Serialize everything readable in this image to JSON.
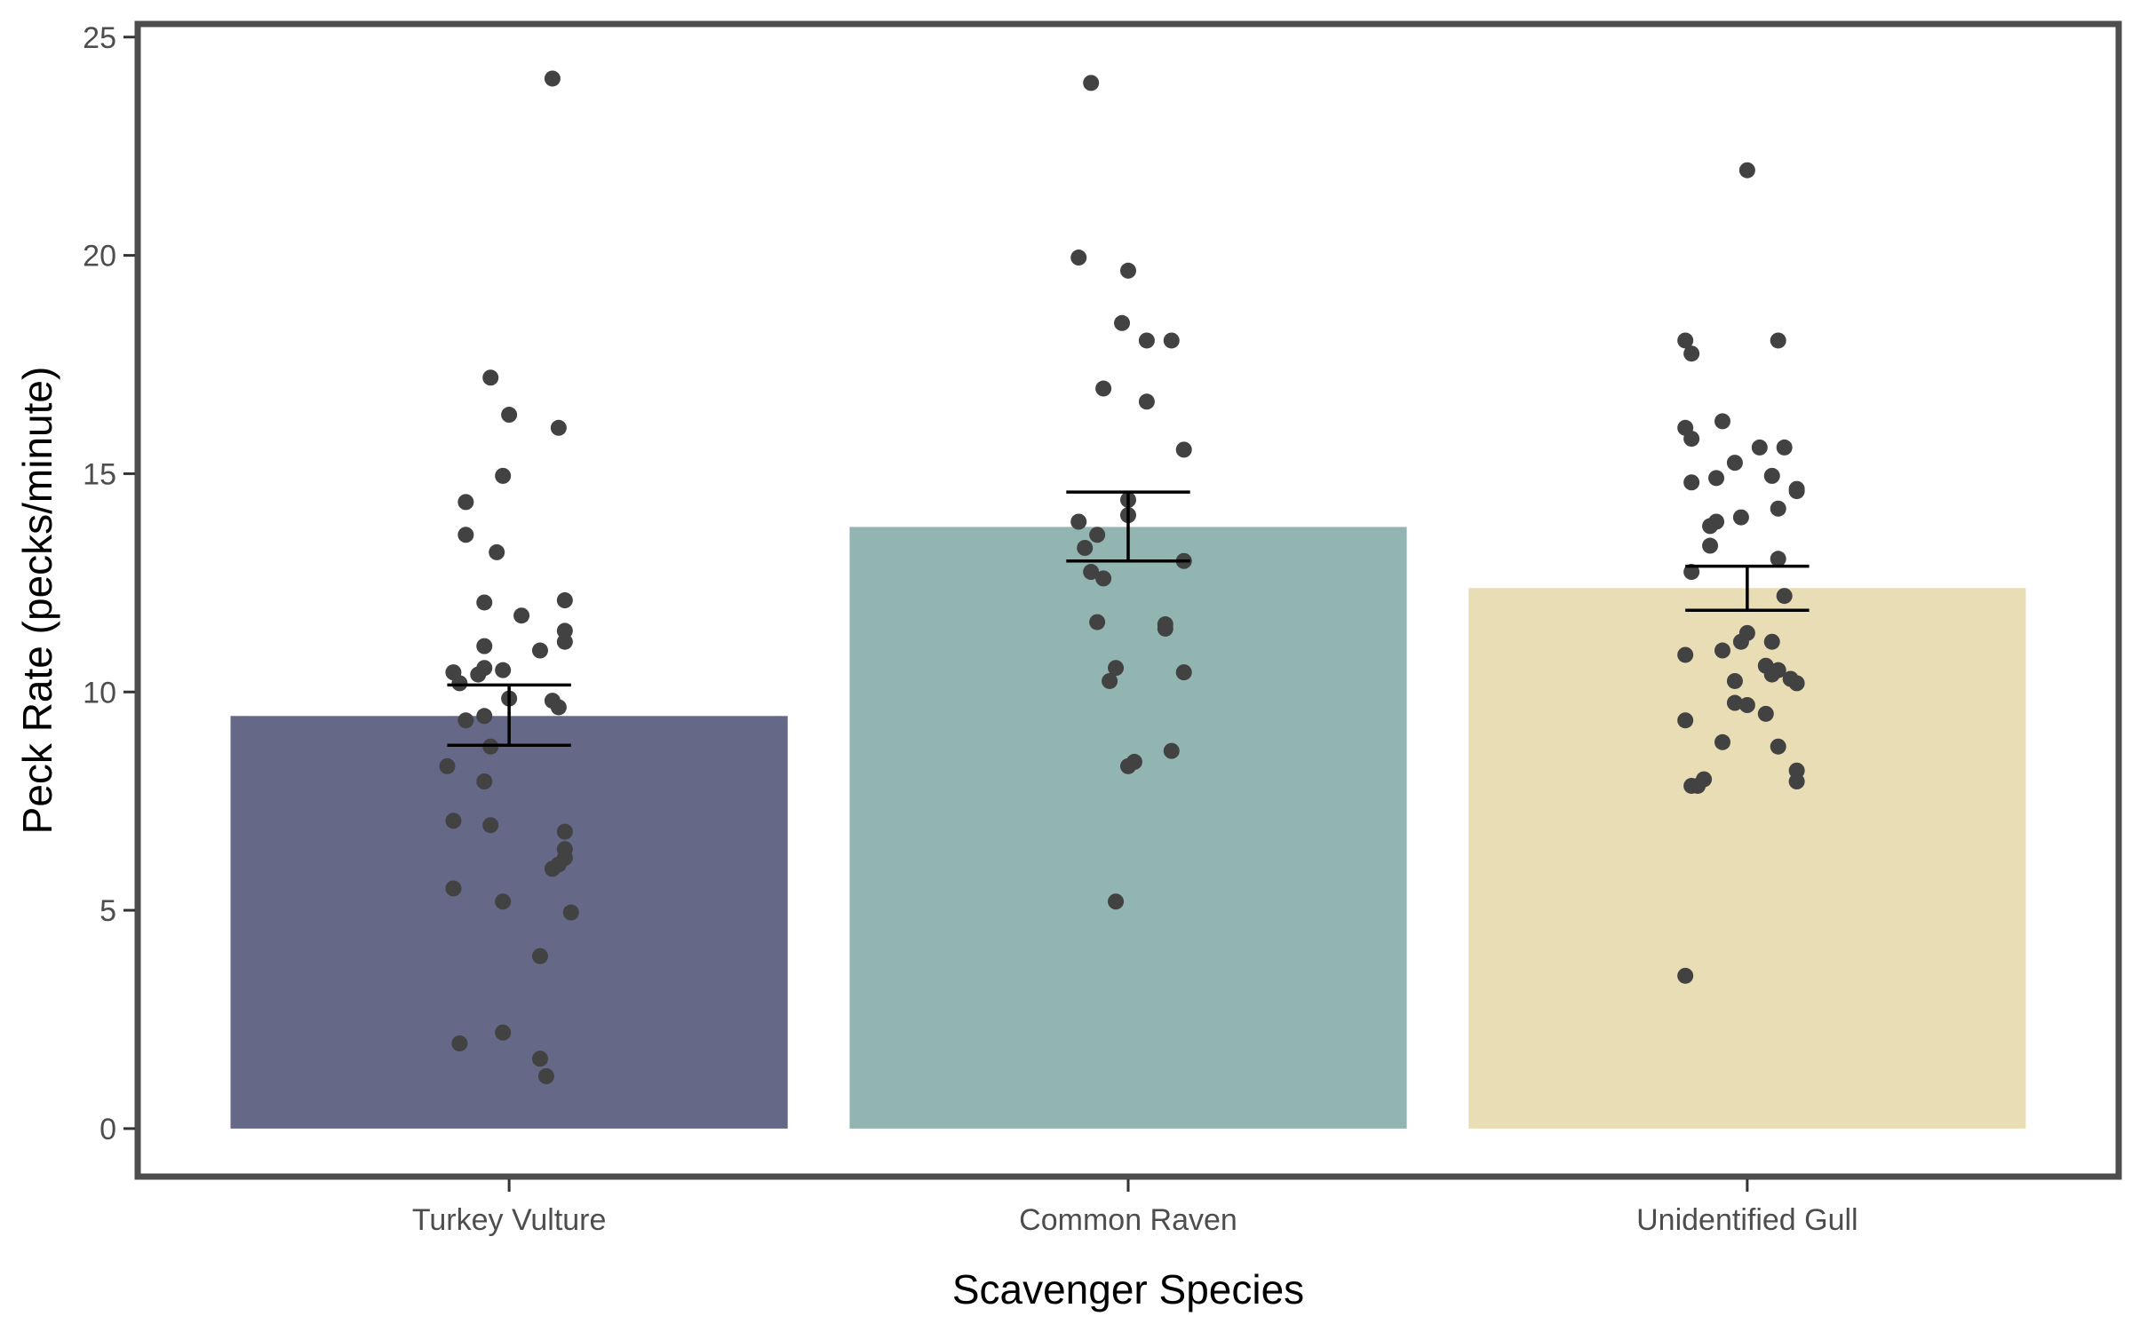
{
  "chart_data": {
    "type": "bar",
    "xlabel": "Scavenger Species",
    "ylabel": "Peck Rate (pecks/minute)",
    "ylim": [
      -1.1,
      25.3
    ],
    "yticks": [
      0,
      5,
      10,
      15,
      20,
      25
    ],
    "grid": false,
    "legend": "none",
    "categories": [
      "Turkey Vulture",
      "Common Raven",
      "Unidentified Gull"
    ],
    "values": [
      9.45,
      13.78,
      12.38
    ],
    "errors": [
      {
        "lower": 8.78,
        "upper": 10.16
      },
      {
        "lower": 13.0,
        "upper": 14.58
      },
      {
        "lower": 11.87,
        "upper": 12.88
      }
    ],
    "colors": [
      "#656886",
      "#93b5b2",
      "#e8ddb5"
    ],
    "point_color": "#424242",
    "points": [
      [
        {
          "dx": 0.07,
          "y": 24.05
        },
        {
          "dx": -0.03,
          "y": 17.2
        },
        {
          "dx": 0.0,
          "y": 16.35
        },
        {
          "dx": 0.08,
          "y": 16.05
        },
        {
          "dx": -0.07,
          "y": 14.35
        },
        {
          "dx": -0.01,
          "y": 14.95
        },
        {
          "dx": -0.07,
          "y": 13.6
        },
        {
          "dx": -0.02,
          "y": 13.2
        },
        {
          "dx": -0.04,
          "y": 12.05
        },
        {
          "dx": 0.02,
          "y": 11.75
        },
        {
          "dx": 0.09,
          "y": 12.1
        },
        {
          "dx": 0.09,
          "y": 11.4
        },
        {
          "dx": -0.04,
          "y": 11.05
        },
        {
          "dx": 0.05,
          "y": 10.95
        },
        {
          "dx": 0.09,
          "y": 11.15
        },
        {
          "dx": -0.09,
          "y": 10.45
        },
        {
          "dx": -0.08,
          "y": 10.2
        },
        {
          "dx": -0.05,
          "y": 10.4
        },
        {
          "dx": -0.04,
          "y": 10.55
        },
        {
          "dx": -0.01,
          "y": 10.5
        },
        {
          "dx": 0.0,
          "y": 9.85
        },
        {
          "dx": 0.07,
          "y": 9.8
        },
        {
          "dx": 0.08,
          "y": 9.65
        },
        {
          "dx": -0.07,
          "y": 9.35
        },
        {
          "dx": -0.04,
          "y": 9.45
        },
        {
          "dx": -0.03,
          "y": 8.75
        },
        {
          "dx": -0.1,
          "y": 8.3
        },
        {
          "dx": -0.04,
          "y": 7.95
        },
        {
          "dx": -0.09,
          "y": 7.05
        },
        {
          "dx": -0.03,
          "y": 6.95
        },
        {
          "dx": 0.09,
          "y": 6.8
        },
        {
          "dx": 0.09,
          "y": 6.4
        },
        {
          "dx": 0.09,
          "y": 6.2
        },
        {
          "dx": 0.08,
          "y": 6.05
        },
        {
          "dx": 0.07,
          "y": 5.95
        },
        {
          "dx": -0.09,
          "y": 5.5
        },
        {
          "dx": -0.01,
          "y": 5.2
        },
        {
          "dx": 0.1,
          "y": 4.95
        },
        {
          "dx": 0.05,
          "y": 3.95
        },
        {
          "dx": -0.08,
          "y": 1.95
        },
        {
          "dx": -0.01,
          "y": 2.2
        },
        {
          "dx": 0.05,
          "y": 1.6
        },
        {
          "dx": 0.06,
          "y": 1.2
        }
      ],
      [
        {
          "dx": -0.06,
          "y": 23.95
        },
        {
          "dx": -0.08,
          "y": 19.95
        },
        {
          "dx": 0.0,
          "y": 19.65
        },
        {
          "dx": -0.01,
          "y": 18.45
        },
        {
          "dx": 0.03,
          "y": 18.05
        },
        {
          "dx": 0.07,
          "y": 18.05
        },
        {
          "dx": -0.04,
          "y": 16.95
        },
        {
          "dx": 0.03,
          "y": 16.65
        },
        {
          "dx": 0.09,
          "y": 15.55
        },
        {
          "dx": 0.0,
          "y": 14.4
        },
        {
          "dx": 0.0,
          "y": 14.05
        },
        {
          "dx": -0.08,
          "y": 13.9
        },
        {
          "dx": -0.05,
          "y": 13.6
        },
        {
          "dx": -0.07,
          "y": 13.3
        },
        {
          "dx": 0.09,
          "y": 13.0
        },
        {
          "dx": -0.06,
          "y": 12.75
        },
        {
          "dx": -0.04,
          "y": 12.6
        },
        {
          "dx": -0.05,
          "y": 11.6
        },
        {
          "dx": 0.06,
          "y": 11.55
        },
        {
          "dx": 0.06,
          "y": 11.45
        },
        {
          "dx": -0.02,
          "y": 10.55
        },
        {
          "dx": 0.09,
          "y": 10.45
        },
        {
          "dx": -0.03,
          "y": 10.25
        },
        {
          "dx": 0.07,
          "y": 8.65
        },
        {
          "dx": 0.01,
          "y": 8.4
        },
        {
          "dx": 0.0,
          "y": 8.3
        },
        {
          "dx": -0.02,
          "y": 5.2
        }
      ],
      [
        {
          "dx": 0.0,
          "y": 21.95
        },
        {
          "dx": -0.1,
          "y": 18.05
        },
        {
          "dx": 0.05,
          "y": 18.05
        },
        {
          "dx": -0.09,
          "y": 17.75
        },
        {
          "dx": -0.04,
          "y": 16.2
        },
        {
          "dx": -0.1,
          "y": 16.05
        },
        {
          "dx": -0.09,
          "y": 15.8
        },
        {
          "dx": 0.02,
          "y": 15.6
        },
        {
          "dx": 0.06,
          "y": 15.6
        },
        {
          "dx": -0.02,
          "y": 15.25
        },
        {
          "dx": -0.09,
          "y": 14.8
        },
        {
          "dx": -0.05,
          "y": 14.9
        },
        {
          "dx": 0.04,
          "y": 14.95
        },
        {
          "dx": 0.08,
          "y": 14.6
        },
        {
          "dx": 0.08,
          "y": 14.65
        },
        {
          "dx": 0.05,
          "y": 14.2
        },
        {
          "dx": -0.05,
          "y": 13.9
        },
        {
          "dx": -0.06,
          "y": 13.8
        },
        {
          "dx": -0.01,
          "y": 14.0
        },
        {
          "dx": -0.06,
          "y": 13.35
        },
        {
          "dx": 0.05,
          "y": 13.05
        },
        {
          "dx": -0.09,
          "y": 12.75
        },
        {
          "dx": 0.06,
          "y": 12.2
        },
        {
          "dx": 0.0,
          "y": 11.35
        },
        {
          "dx": -0.01,
          "y": 11.15
        },
        {
          "dx": 0.04,
          "y": 11.15
        },
        {
          "dx": -0.04,
          "y": 10.95
        },
        {
          "dx": -0.1,
          "y": 10.85
        },
        {
          "dx": 0.03,
          "y": 10.6
        },
        {
          "dx": 0.05,
          "y": 10.5
        },
        {
          "dx": 0.04,
          "y": 10.4
        },
        {
          "dx": 0.07,
          "y": 10.3
        },
        {
          "dx": 0.08,
          "y": 10.2
        },
        {
          "dx": -0.02,
          "y": 10.25
        },
        {
          "dx": -0.02,
          "y": 9.75
        },
        {
          "dx": 0.0,
          "y": 9.7
        },
        {
          "dx": 0.03,
          "y": 9.5
        },
        {
          "dx": -0.1,
          "y": 9.35
        },
        {
          "dx": -0.04,
          "y": 8.85
        },
        {
          "dx": 0.05,
          "y": 8.75
        },
        {
          "dx": 0.08,
          "y": 8.2
        },
        {
          "dx": -0.07,
          "y": 8.0
        },
        {
          "dx": -0.09,
          "y": 7.85
        },
        {
          "dx": -0.08,
          "y": 7.85
        },
        {
          "dx": 0.08,
          "y": 7.95
        },
        {
          "dx": -0.1,
          "y": 3.5
        }
      ]
    ]
  }
}
